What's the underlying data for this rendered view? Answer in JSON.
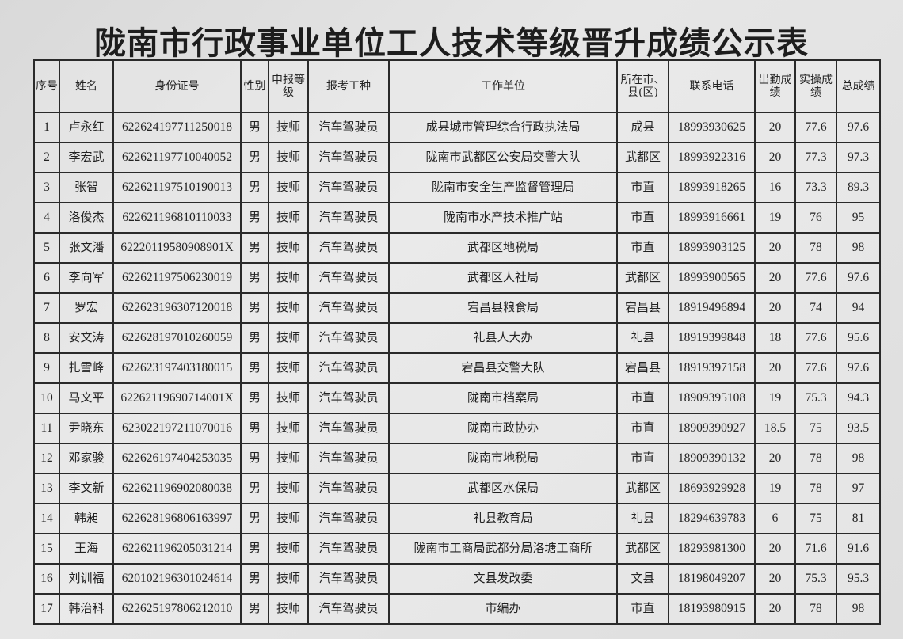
{
  "title": "陇南市行政事业单位工人技术等级晋升成绩公示表",
  "columns": [
    "序号",
    "姓名",
    "身份证号",
    "性别",
    "申报等级",
    "报考工种",
    "工作单位",
    "所在市、县(区)",
    "联系电话",
    "出勤成绩",
    "实操成绩",
    "总成绩"
  ],
  "rows": [
    [
      "1",
      "卢永红",
      "622624197711250018",
      "男",
      "技师",
      "汽车驾驶员",
      "成县城市管理综合行政执法局",
      "成县",
      "18993930625",
      "20",
      "77.6",
      "97.6"
    ],
    [
      "2",
      "李宏武",
      "622621197710040052",
      "男",
      "技师",
      "汽车驾驶员",
      "陇南市武都区公安局交警大队",
      "武都区",
      "18993922316",
      "20",
      "77.3",
      "97.3"
    ],
    [
      "3",
      "张智",
      "622621197510190013",
      "男",
      "技师",
      "汽车驾驶员",
      "陇南市安全生产监督管理局",
      "市直",
      "18993918265",
      "16",
      "73.3",
      "89.3"
    ],
    [
      "4",
      "洛俊杰",
      "622621196810110033",
      "男",
      "技师",
      "汽车驾驶员",
      "陇南市水产技术推广站",
      "市直",
      "18993916661",
      "19",
      "76",
      "95"
    ],
    [
      "5",
      "张文潘",
      "62220119580908901X",
      "男",
      "技师",
      "汽车驾驶员",
      "武都区地税局",
      "市直",
      "18993903125",
      "20",
      "78",
      "98"
    ],
    [
      "6",
      "李向军",
      "622621197506230019",
      "男",
      "技师",
      "汽车驾驶员",
      "武都区人社局",
      "武都区",
      "18993900565",
      "20",
      "77.6",
      "97.6"
    ],
    [
      "7",
      "罗宏",
      "622623196307120018",
      "男",
      "技师",
      "汽车驾驶员",
      "宕昌县粮食局",
      "宕昌县",
      "18919496894",
      "20",
      "74",
      "94"
    ],
    [
      "8",
      "安文涛",
      "622628197010260059",
      "男",
      "技师",
      "汽车驾驶员",
      "礼县人大办",
      "礼县",
      "18919399848",
      "18",
      "77.6",
      "95.6"
    ],
    [
      "9",
      "扎雪峰",
      "622623197403180015",
      "男",
      "技师",
      "汽车驾驶员",
      "宕昌县交警大队",
      "宕昌县",
      "18919397158",
      "20",
      "77.6",
      "97.6"
    ],
    [
      "10",
      "马文平",
      "62262119690714001X",
      "男",
      "技师",
      "汽车驾驶员",
      "陇南市档案局",
      "市直",
      "18909395108",
      "19",
      "75.3",
      "94.3"
    ],
    [
      "11",
      "尹晓东",
      "623022197211070016",
      "男",
      "技师",
      "汽车驾驶员",
      "陇南市政协办",
      "市直",
      "18909390927",
      "18.5",
      "75",
      "93.5"
    ],
    [
      "12",
      "邓家骏",
      "622626197404253035",
      "男",
      "技师",
      "汽车驾驶员",
      "陇南市地税局",
      "市直",
      "18909390132",
      "20",
      "78",
      "98"
    ],
    [
      "13",
      "李文新",
      "622621196902080038",
      "男",
      "技师",
      "汽车驾驶员",
      "武都区水保局",
      "武都区",
      "18693929928",
      "19",
      "78",
      "97"
    ],
    [
      "14",
      "韩昶",
      "622628196806163997",
      "男",
      "技师",
      "汽车驾驶员",
      "礼县教育局",
      "礼县",
      "18294639783",
      "6",
      "75",
      "81"
    ],
    [
      "15",
      "王海",
      "622621196205031214",
      "男",
      "技师",
      "汽车驾驶员",
      "陇南市工商局武都分局洛塘工商所",
      "武都区",
      "18293981300",
      "20",
      "71.6",
      "91.6"
    ],
    [
      "16",
      "刘训福",
      "620102196301024614",
      "男",
      "技师",
      "汽车驾驶员",
      "文县发改委",
      "文县",
      "18198049207",
      "20",
      "75.3",
      "95.3"
    ],
    [
      "17",
      "韩治科",
      "622625197806212010",
      "男",
      "技师",
      "汽车驾驶员",
      "市编办",
      "市直",
      "18193980915",
      "20",
      "78",
      "98"
    ]
  ]
}
